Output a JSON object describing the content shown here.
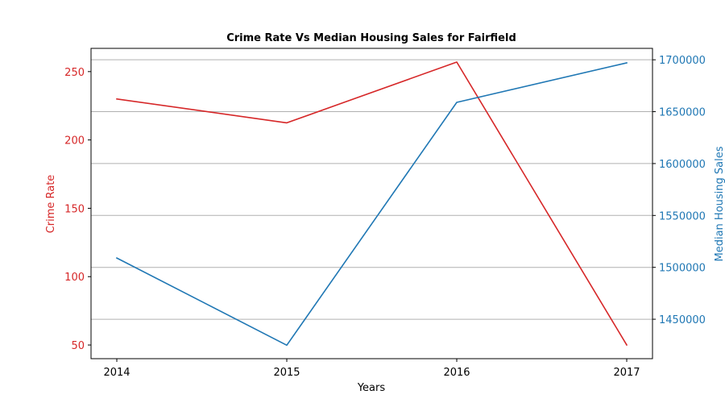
{
  "chart_data": {
    "type": "line",
    "title": "Crime Rate Vs Median Housing Sales for Fairfield",
    "xlabel": "Years",
    "ylabel_left": "Crime Rate",
    "ylabel_right": "Median Housing Sales",
    "x": [
      "2014",
      "2015",
      "2016",
      "2017"
    ],
    "x_ticks": [
      "2014",
      "2015",
      "2016",
      "2017"
    ],
    "ylim_left": [
      40,
      267
    ],
    "ylim_right": [
      1412000,
      1711000
    ],
    "yticks_left": [
      50,
      100,
      150,
      200,
      250
    ],
    "yticks_right": [
      1450000,
      1500000,
      1550000,
      1600000,
      1650000,
      1700000
    ],
    "grid": "horizontal lines from right axis",
    "series": [
      {
        "axis": "left",
        "color": "#d62728",
        "values": [
          230,
          212.5,
          257,
          50
        ]
      },
      {
        "axis": "right",
        "color": "#1f77b4",
        "values": [
          1509000,
          1425000,
          1659000,
          1697000
        ]
      }
    ]
  }
}
